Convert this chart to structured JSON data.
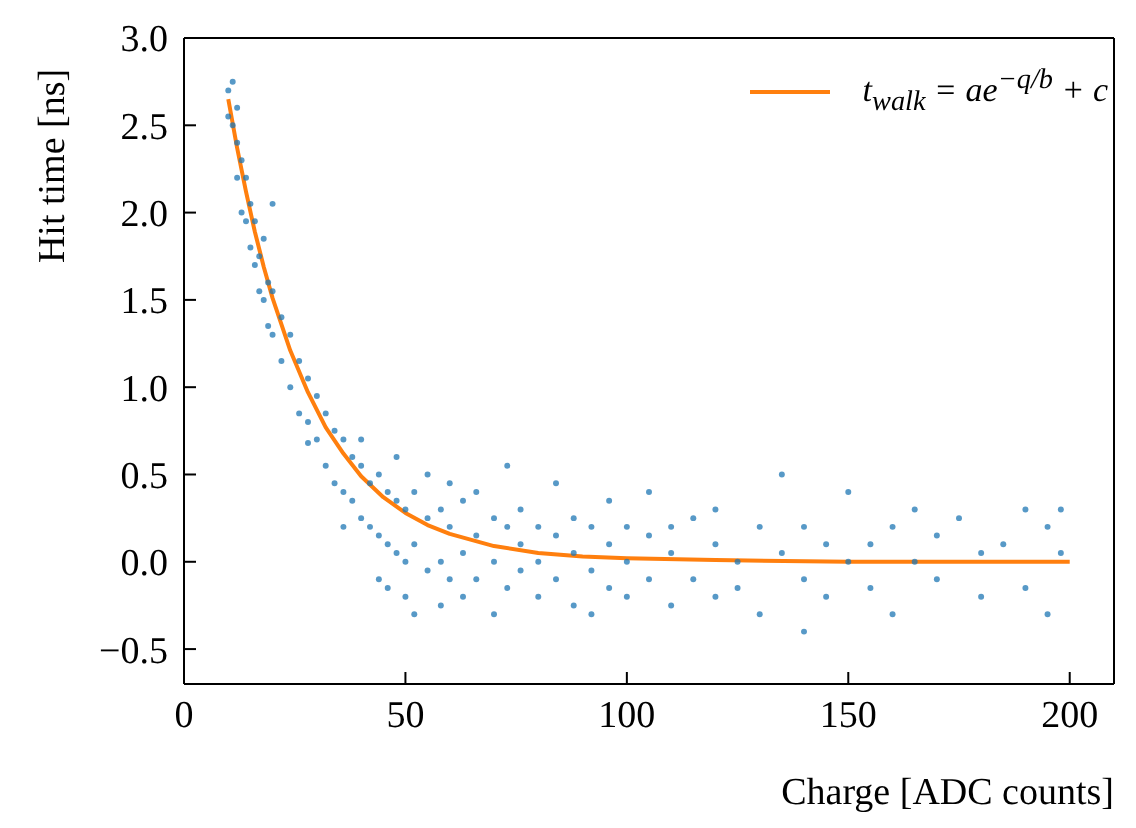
{
  "chart_data": {
    "type": "scatter",
    "xlabel": "Charge [ADC counts]",
    "ylabel": "Hit time [ns]",
    "xlim": [
      0,
      210
    ],
    "ylim": [
      -0.7,
      3.0
    ],
    "xticks": [
      0,
      50,
      100,
      150,
      200
    ],
    "yticks": [
      {
        "value": -0.5,
        "label": "−0.5"
      },
      {
        "value": 0,
        "label": "0.0"
      },
      {
        "value": 0.5,
        "label": "0.5"
      },
      {
        "value": 1,
        "label": "1.0"
      },
      {
        "value": 1.5,
        "label": "1.5"
      },
      {
        "value": 2,
        "label": "2.0"
      },
      {
        "value": 2.5,
        "label": "2.5"
      },
      {
        "value": 3,
        "label": "3.0"
      }
    ],
    "grid": false,
    "legend": "top right",
    "marker": "circle",
    "series": [
      {
        "color": "#1f77b4",
        "x": [
          10,
          10,
          11,
          11,
          12,
          12,
          12,
          13,
          13,
          14,
          14,
          15,
          15,
          16,
          16,
          17,
          17,
          18,
          18,
          19,
          19,
          20,
          20,
          20,
          22,
          22,
          24,
          24,
          26,
          26,
          28,
          28,
          28,
          30,
          30,
          32,
          32,
          34,
          34,
          36,
          36,
          36,
          38,
          38,
          40,
          40,
          40,
          42,
          42,
          44,
          44,
          44,
          46,
          46,
          46,
          48,
          48,
          48,
          50,
          50,
          50,
          52,
          52,
          52,
          55,
          55,
          55,
          58,
          58,
          58,
          60,
          60,
          60,
          63,
          63,
          63,
          66,
          66,
          66,
          70,
          70,
          70,
          73,
          73,
          73,
          76,
          76,
          76,
          80,
          80,
          80,
          84,
          84,
          84,
          88,
          88,
          88,
          92,
          92,
          92,
          96,
          96,
          96,
          100,
          100,
          100,
          105,
          105,
          105,
          110,
          110,
          110,
          115,
          115,
          120,
          120,
          120,
          125,
          125,
          130,
          130,
          135,
          135,
          140,
          140,
          140,
          145,
          145,
          150,
          150,
          155,
          155,
          160,
          160,
          165,
          165,
          170,
          170,
          175,
          180,
          180,
          185,
          190,
          190,
          195,
          195,
          198,
          198
        ],
        "values": [
          2.7,
          2.55,
          2.75,
          2.5,
          2.4,
          2.2,
          2.6,
          2.3,
          2.0,
          2.2,
          1.95,
          1.8,
          2.05,
          1.95,
          1.7,
          1.75,
          1.55,
          1.85,
          1.5,
          1.6,
          1.35,
          1.55,
          1.3,
          2.05,
          1.4,
          1.15,
          1.3,
          1.0,
          1.15,
          0.85,
          1.05,
          0.8,
          0.68,
          0.95,
          0.7,
          0.85,
          0.55,
          0.75,
          0.45,
          0.7,
          0.4,
          0.2,
          0.6,
          0.35,
          0.55,
          0.25,
          0.7,
          0.45,
          0.2,
          0.5,
          0.15,
          -0.1,
          0.4,
          0.1,
          -0.15,
          0.35,
          0.05,
          0.6,
          0.3,
          0.0,
          -0.2,
          0.4,
          0.1,
          -0.3,
          0.25,
          -0.05,
          0.5,
          0.3,
          0.0,
          -0.25,
          0.2,
          -0.1,
          0.45,
          0.35,
          0.05,
          -0.2,
          0.15,
          -0.1,
          0.4,
          0.25,
          0.0,
          -0.3,
          0.2,
          -0.15,
          0.55,
          0.1,
          -0.05,
          0.3,
          0.2,
          -0.2,
          0.0,
          0.15,
          -0.1,
          0.45,
          0.05,
          -0.25,
          0.25,
          0.2,
          -0.05,
          -0.3,
          0.1,
          -0.15,
          0.35,
          0.0,
          0.2,
          -0.2,
          0.15,
          -0.1,
          0.4,
          0.05,
          -0.25,
          0.2,
          -0.1,
          0.25,
          0.1,
          -0.2,
          0.3,
          0.0,
          -0.15,
          0.2,
          -0.3,
          0.05,
          0.5,
          -0.1,
          0.2,
          -0.4,
          0.1,
          -0.2,
          0.4,
          0.0,
          -0.15,
          0.1,
          0.2,
          -0.3,
          0.0,
          0.3,
          -0.1,
          0.15,
          0.25,
          -0.2,
          0.05,
          0.1,
          0.3,
          -0.15,
          0.2,
          -0.3,
          0.3,
          0.05
        ]
      },
      {
        "type": "line",
        "name": "t$_{walk}$ = ae$^{−q/b}$ + c",
        "color": "#ff7f0e",
        "marker": "none",
        "line_style": "solid",
        "x": [
          10,
          12,
          14,
          16,
          18,
          20,
          24,
          28,
          32,
          36,
          40,
          45,
          50,
          55,
          60,
          70,
          80,
          90,
          100,
          120,
          150,
          200
        ],
        "values": [
          2.65,
          2.37,
          2.12,
          1.89,
          1.69,
          1.51,
          1.21,
          0.97,
          0.77,
          0.62,
          0.49,
          0.37,
          0.28,
          0.21,
          0.16,
          0.09,
          0.05,
          0.03,
          0.02,
          0.01,
          0,
          0
        ]
      }
    ]
  }
}
